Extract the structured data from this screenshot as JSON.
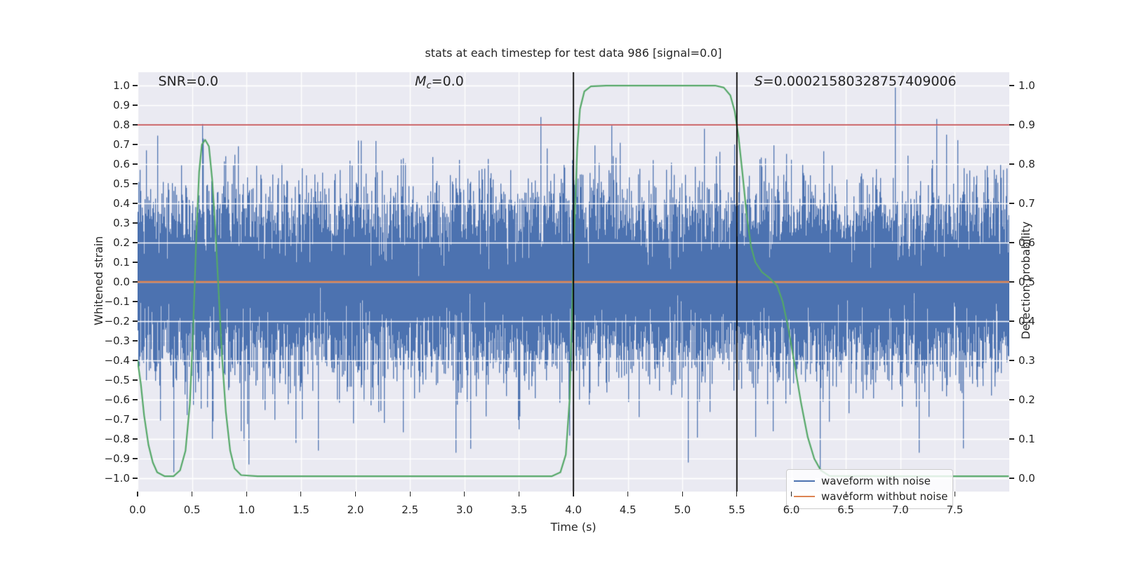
{
  "chart_data": {
    "type": "line",
    "title": "stats at each timestep for test data 986 [signal=0.0]",
    "xlabel": "Time (s)",
    "ylabel_left": "Whitened strain",
    "ylabel_right": "Detection probability",
    "xlim": [
      0,
      8.0
    ],
    "ylim_left": [
      -1.068,
      1.068
    ],
    "ylim_right": [
      -0.034,
      1.034
    ],
    "grid": {
      "on": true,
      "color": "#ffffff",
      "x_step": 0.5,
      "y_left_step": 0.1,
      "y_right_step": 0.1
    },
    "x_tick_values": [
      0.0,
      0.5,
      1.0,
      1.5,
      2.0,
      2.5,
      3.0,
      3.5,
      4.0,
      4.5,
      5.0,
      5.5,
      6.0,
      6.5,
      7.0,
      7.5
    ],
    "x_tick_labels": [
      "0.0",
      "0.5",
      "1.0",
      "1.5",
      "2.0",
      "2.5",
      "3.0",
      "3.5",
      "4.0",
      "4.5",
      "5.0",
      "5.5",
      "6.0",
      "6.5",
      "7.0",
      "7.5"
    ],
    "y_left_tick_values": [
      1.0,
      0.9,
      0.8,
      0.7,
      0.6,
      0.5,
      0.4,
      0.3,
      0.2,
      0.1,
      0.0,
      -0.1,
      -0.2,
      -0.3,
      -0.4,
      -0.5,
      -0.6,
      -0.7,
      -0.8,
      -0.9,
      -1.0
    ],
    "y_left_tick_labels": [
      "1.0",
      "0.9",
      "0.8",
      "0.7",
      "0.6",
      "0.5",
      "0.4",
      "0.3",
      "0.2",
      "0.1",
      "0.0",
      "−0.1",
      "−0.2",
      "−0.3",
      "−0.4",
      "−0.5",
      "−0.6",
      "−0.7",
      "−0.8",
      "−0.9",
      "−1.0"
    ],
    "y_right_tick_values": [
      1.0,
      0.9,
      0.8,
      0.7,
      0.6,
      0.5,
      0.4,
      0.3,
      0.2,
      0.1,
      0.0
    ],
    "y_right_tick_labels": [
      "1.0",
      "0.9",
      "0.8",
      "0.7",
      "0.6",
      "0.5",
      "0.4",
      "0.3",
      "0.2",
      "0.1",
      "0.0"
    ],
    "series": [
      {
        "name": "waveform with noise",
        "color": "#4c72b0",
        "axis": "left",
        "kind": "noise",
        "mean": 0.0,
        "std": 0.22,
        "samples_per_pixel": 12,
        "seed": 986,
        "extremes": [
          {
            "t": 0.33,
            "v": -0.97
          },
          {
            "t": 1.02,
            "v": -0.93
          },
          {
            "t": 1.45,
            "v": -0.82
          },
          {
            "t": 2.92,
            "v": -0.87
          },
          {
            "t": 3.05,
            "v": -0.85
          },
          {
            "t": 5.05,
            "v": -0.92
          },
          {
            "t": 6.26,
            "v": -0.96
          },
          {
            "t": 7.17,
            "v": -0.87
          },
          {
            "t": 0.6,
            "v": 0.73
          },
          {
            "t": 2.02,
            "v": 0.72
          },
          {
            "t": 3.7,
            "v": 0.84
          },
          {
            "t": 4.35,
            "v": 0.8
          },
          {
            "t": 5.2,
            "v": 0.78
          },
          {
            "t": 6.95,
            "v": 0.99
          },
          {
            "t": 7.33,
            "v": 0.83
          },
          {
            "t": 7.42,
            "v": 0.75
          }
        ]
      },
      {
        "name": "waveform without noise",
        "color": "#dd8452",
        "axis": "left",
        "kind": "constant",
        "value": 0.0
      },
      {
        "name": "detection probability",
        "color": "#55a868",
        "axis": "right",
        "kind": "curve",
        "points": [
          [
            0.0,
            0.3
          ],
          [
            0.03,
            0.24
          ],
          [
            0.06,
            0.16
          ],
          [
            0.1,
            0.085
          ],
          [
            0.14,
            0.04
          ],
          [
            0.18,
            0.015
          ],
          [
            0.25,
            0.005
          ],
          [
            0.33,
            0.005
          ],
          [
            0.39,
            0.02
          ],
          [
            0.44,
            0.07
          ],
          [
            0.48,
            0.19
          ],
          [
            0.51,
            0.38
          ],
          [
            0.54,
            0.62
          ],
          [
            0.565,
            0.78
          ],
          [
            0.59,
            0.85
          ],
          [
            0.62,
            0.862
          ],
          [
            0.655,
            0.845
          ],
          [
            0.685,
            0.76
          ],
          [
            0.715,
            0.63
          ],
          [
            0.745,
            0.47
          ],
          [
            0.775,
            0.31
          ],
          [
            0.81,
            0.17
          ],
          [
            0.85,
            0.07
          ],
          [
            0.89,
            0.025
          ],
          [
            0.95,
            0.008
          ],
          [
            1.1,
            0.005
          ],
          [
            2.0,
            0.005
          ],
          [
            3.0,
            0.005
          ],
          [
            3.8,
            0.005
          ],
          [
            3.88,
            0.015
          ],
          [
            3.93,
            0.06
          ],
          [
            3.965,
            0.2
          ],
          [
            3.99,
            0.45
          ],
          [
            4.01,
            0.65
          ],
          [
            4.035,
            0.84
          ],
          [
            4.06,
            0.94
          ],
          [
            4.1,
            0.985
          ],
          [
            4.16,
            0.998
          ],
          [
            4.3,
            1.0
          ],
          [
            5.0,
            1.0
          ],
          [
            5.3,
            1.0
          ],
          [
            5.38,
            0.995
          ],
          [
            5.44,
            0.975
          ],
          [
            5.48,
            0.935
          ],
          [
            5.515,
            0.87
          ],
          [
            5.55,
            0.78
          ],
          [
            5.59,
            0.67
          ],
          [
            5.63,
            0.59
          ],
          [
            5.67,
            0.55
          ],
          [
            5.73,
            0.525
          ],
          [
            5.8,
            0.51
          ],
          [
            5.87,
            0.49
          ],
          [
            5.92,
            0.45
          ],
          [
            5.97,
            0.385
          ],
          [
            6.03,
            0.29
          ],
          [
            6.09,
            0.19
          ],
          [
            6.15,
            0.105
          ],
          [
            6.21,
            0.05
          ],
          [
            6.27,
            0.02
          ],
          [
            6.35,
            0.006
          ],
          [
            7.0,
            0.005
          ],
          [
            7.99,
            0.005
          ]
        ]
      }
    ],
    "reference_lines": {
      "threshold": {
        "axis": "right",
        "y": 0.9,
        "color": "#c44e52",
        "width": 1.8
      },
      "vlines": [
        {
          "x": 4.0
        },
        {
          "x": 5.5
        }
      ],
      "vline_color": "#000000",
      "vline_width": 1.8
    },
    "annotations": [
      {
        "italic": "",
        "sub": "",
        "text": "SNR=0.0",
        "x": 0.19,
        "y": 1.0
      },
      {
        "italic": "M",
        "sub": "c",
        "text": "=0.0",
        "x": 2.545,
        "y": 1.0
      },
      {
        "italic": "S",
        "sub": "",
        "text": "=0.00021580328757409006",
        "x": 5.66,
        "y": 1.0
      }
    ],
    "colors": {
      "axes_background": "#eaeaf2",
      "figure_background": "#ffffff",
      "grid": "#ffffff",
      "text": "#262626",
      "noise_blue": "#4c72b0",
      "clean_orange": "#dd8452",
      "probability_green": "#55a868",
      "threshold_red": "#c44e52",
      "vline_black": "#000000"
    }
  },
  "legend": {
    "items": [
      {
        "label": "waveform with noise",
        "color": "#4c72b0"
      },
      {
        "label": "waveform without noise",
        "color": "#dd8452"
      }
    ]
  }
}
